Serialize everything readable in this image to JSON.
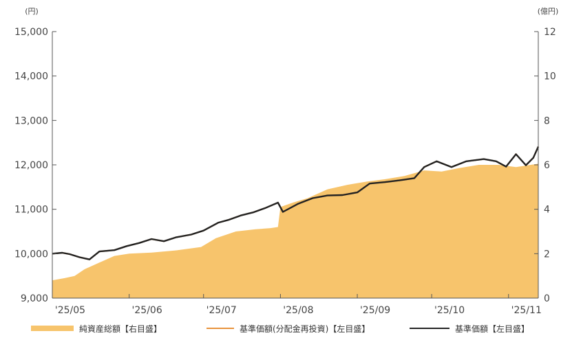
{
  "chart_data": {
    "type": "line",
    "y_left_unit": "(円)",
    "y_right_unit": "(億円)",
    "y_left_ticks": [
      "15,000",
      "14,000",
      "13,000",
      "12,000",
      "11,000",
      "10,000",
      "9,000"
    ],
    "y_left_tick_values": [
      15000,
      14000,
      13000,
      12000,
      11000,
      10000,
      9000
    ],
    "y_right_ticks": [
      "12",
      "10",
      "8",
      "6",
      "4",
      "2",
      "0"
    ],
    "y_right_tick_values": [
      12,
      10,
      8,
      6,
      4,
      2,
      0
    ],
    "ylim_left": [
      9000,
      15000
    ],
    "ylim_right": [
      0,
      12
    ],
    "x_ticks": [
      "'25/05",
      "'25/06",
      "'25/07",
      "'25/08",
      "'25/09",
      "'25/10",
      "'25/11"
    ],
    "x_tick_dates": [
      "2025-05-01",
      "2025-06-01",
      "2025-07-01",
      "2025-08-01",
      "2025-09-01",
      "2025-10-01",
      "2025-11-01"
    ],
    "xlim": [
      "2025-05-01",
      "2025-11-13"
    ],
    "grid": false,
    "legend_position": "bottom",
    "colors": {
      "area": "#f7c46c",
      "orange_line": "#e8923a",
      "black_line": "#222222"
    },
    "series": [
      {
        "name": "純資産総額【右目盛】",
        "kind": "area",
        "axis": "right",
        "points": [
          [
            "2025-05-01",
            0.8
          ],
          [
            "2025-05-06",
            0.9
          ],
          [
            "2025-05-10",
            1.0
          ],
          [
            "2025-05-14",
            1.3
          ],
          [
            "2025-05-20",
            1.6
          ],
          [
            "2025-05-26",
            1.9
          ],
          [
            "2025-06-01",
            2.0
          ],
          [
            "2025-06-10",
            2.05
          ],
          [
            "2025-06-20",
            2.15
          ],
          [
            "2025-06-30",
            2.3
          ],
          [
            "2025-07-06",
            2.7
          ],
          [
            "2025-07-14",
            3.0
          ],
          [
            "2025-07-18",
            3.05
          ],
          [
            "2025-07-22",
            3.1
          ],
          [
            "2025-07-28",
            3.15
          ],
          [
            "2025-07-31",
            3.2
          ],
          [
            "2025-08-01",
            4.1
          ],
          [
            "2025-08-06",
            4.3
          ],
          [
            "2025-08-12",
            4.5
          ],
          [
            "2025-08-20",
            4.9
          ],
          [
            "2025-08-28",
            5.1
          ],
          [
            "2025-09-05",
            5.25
          ],
          [
            "2025-09-12",
            5.35
          ],
          [
            "2025-09-20",
            5.5
          ],
          [
            "2025-09-28",
            5.75
          ],
          [
            "2025-10-05",
            5.7
          ],
          [
            "2025-10-12",
            5.85
          ],
          [
            "2025-10-20",
            6.0
          ],
          [
            "2025-10-28",
            6.0
          ],
          [
            "2025-11-04",
            5.9
          ],
          [
            "2025-11-10",
            6.0
          ],
          [
            "2025-11-13",
            6.05
          ]
        ]
      },
      {
        "name": "基準価額(分配金再投資)【左目盛】",
        "kind": "line",
        "axis": "left",
        "points": [
          [
            "2025-05-01",
            10000
          ],
          [
            "2025-05-05",
            10020
          ],
          [
            "2025-05-08",
            9990
          ],
          [
            "2025-05-12",
            9920
          ],
          [
            "2025-05-16",
            9870
          ],
          [
            "2025-05-20",
            10050
          ],
          [
            "2025-05-26",
            10080
          ],
          [
            "2025-05-31",
            10170
          ],
          [
            "2025-06-05",
            10240
          ],
          [
            "2025-06-10",
            10330
          ],
          [
            "2025-06-15",
            10280
          ],
          [
            "2025-06-20",
            10370
          ],
          [
            "2025-06-26",
            10430
          ],
          [
            "2025-07-01",
            10520
          ],
          [
            "2025-07-07",
            10700
          ],
          [
            "2025-07-11",
            10760
          ],
          [
            "2025-07-16",
            10860
          ],
          [
            "2025-07-21",
            10930
          ],
          [
            "2025-07-26",
            11030
          ],
          [
            "2025-07-31",
            11150
          ],
          [
            "2025-08-02",
            10940
          ],
          [
            "2025-08-08",
            11120
          ],
          [
            "2025-08-14",
            11250
          ],
          [
            "2025-08-20",
            11310
          ],
          [
            "2025-08-26",
            11320
          ],
          [
            "2025-09-01",
            11380
          ],
          [
            "2025-09-06",
            11580
          ],
          [
            "2025-09-12",
            11610
          ],
          [
            "2025-09-18",
            11650
          ],
          [
            "2025-09-24",
            11700
          ],
          [
            "2025-09-28",
            11950
          ],
          [
            "2025-10-03",
            12080
          ],
          [
            "2025-10-09",
            11950
          ],
          [
            "2025-10-15",
            12080
          ],
          [
            "2025-10-22",
            12130
          ],
          [
            "2025-10-27",
            12080
          ],
          [
            "2025-10-31",
            11960
          ],
          [
            "2025-11-04",
            12240
          ],
          [
            "2025-11-08",
            11990
          ],
          [
            "2025-11-11",
            12160
          ],
          [
            "2025-11-13",
            12410
          ]
        ]
      },
      {
        "name": "基準価額【左目盛】",
        "kind": "line",
        "axis": "left",
        "points": [
          [
            "2025-05-01",
            10000
          ],
          [
            "2025-05-05",
            10020
          ],
          [
            "2025-05-08",
            9990
          ],
          [
            "2025-05-12",
            9920
          ],
          [
            "2025-05-16",
            9870
          ],
          [
            "2025-05-20",
            10050
          ],
          [
            "2025-05-26",
            10080
          ],
          [
            "2025-05-31",
            10170
          ],
          [
            "2025-06-05",
            10240
          ],
          [
            "2025-06-10",
            10330
          ],
          [
            "2025-06-15",
            10280
          ],
          [
            "2025-06-20",
            10370
          ],
          [
            "2025-06-26",
            10430
          ],
          [
            "2025-07-01",
            10520
          ],
          [
            "2025-07-07",
            10700
          ],
          [
            "2025-07-11",
            10760
          ],
          [
            "2025-07-16",
            10860
          ],
          [
            "2025-07-21",
            10930
          ],
          [
            "2025-07-26",
            11030
          ],
          [
            "2025-07-31",
            11150
          ],
          [
            "2025-08-02",
            10940
          ],
          [
            "2025-08-08",
            11120
          ],
          [
            "2025-08-14",
            11250
          ],
          [
            "2025-08-20",
            11310
          ],
          [
            "2025-08-26",
            11320
          ],
          [
            "2025-09-01",
            11380
          ],
          [
            "2025-09-06",
            11580
          ],
          [
            "2025-09-12",
            11610
          ],
          [
            "2025-09-18",
            11650
          ],
          [
            "2025-09-24",
            11700
          ],
          [
            "2025-09-28",
            11950
          ],
          [
            "2025-10-03",
            12080
          ],
          [
            "2025-10-09",
            11950
          ],
          [
            "2025-10-15",
            12080
          ],
          [
            "2025-10-22",
            12130
          ],
          [
            "2025-10-27",
            12080
          ],
          [
            "2025-10-31",
            11960
          ],
          [
            "2025-11-04",
            12240
          ],
          [
            "2025-11-08",
            11990
          ],
          [
            "2025-11-11",
            12160
          ],
          [
            "2025-11-13",
            12410
          ]
        ]
      }
    ]
  },
  "legend": {
    "items": [
      {
        "label": "純資産総額【右目盛】",
        "swatch": "area"
      },
      {
        "label": "基準価額(分配金再投資)【左目盛】",
        "swatch": "orange"
      },
      {
        "label": "基準価額【左目盛】",
        "swatch": "black"
      }
    ]
  }
}
